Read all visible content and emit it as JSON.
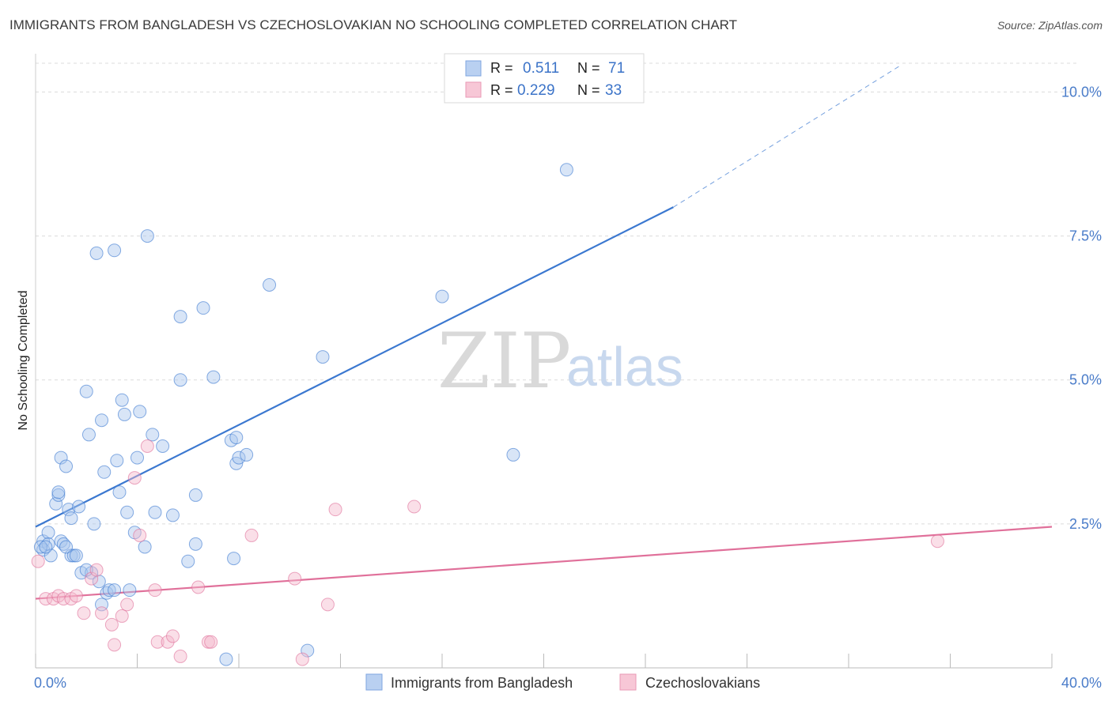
{
  "title": "IMMIGRANTS FROM BANGLADESH VS CZECHOSLOVAKIAN NO SCHOOLING COMPLETED CORRELATION CHART",
  "source": "Source: ZipAtlas.com",
  "watermark": {
    "zip": "ZIP",
    "atlas": "atlas"
  },
  "colors": {
    "blue": "#3b78d0",
    "blue_fill": "#a9c6ee",
    "pink": "#e0709a",
    "pink_fill": "#f4b8cc",
    "grid": "#dcdcdc",
    "tick_text": "#4a7cc9"
  },
  "stats": {
    "blue": {
      "r_label": "R =",
      "r_value": "0.511",
      "n_label": "N =",
      "n_value": "71"
    },
    "pink": {
      "r_label": "R =",
      "r_value": "0.229",
      "n_label": "N =",
      "n_value": "33"
    }
  },
  "chart_data": {
    "type": "scatter",
    "title": "IMMIGRANTS FROM BANGLADESH VS CZECHOSLOVAKIAN NO SCHOOLING COMPLETED CORRELATION CHART",
    "xlabel": "",
    "ylabel": "No Schooling Completed",
    "xlim": [
      0,
      40
    ],
    "ylim": [
      0,
      10.5
    ],
    "x_tick_labels": [
      "0.0%",
      "40.0%"
    ],
    "y_ticks": [
      2.5,
      5.0,
      7.5,
      10.0
    ],
    "y_tick_labels": [
      "2.5%",
      "5.0%",
      "7.5%",
      "10.0%"
    ],
    "grid": true,
    "legend_position": "bottom-center",
    "series": [
      {
        "name": "Immigrants from Bangladesh",
        "color": "#3b78d0",
        "trend": {
          "x0": 0,
          "y0": 2.45,
          "x1": 25.1,
          "y1": 8.0,
          "dashed_to_x": 34,
          "dashed_to_y": 10.45
        },
        "points": [
          [
            0.3,
            2.2
          ],
          [
            0.3,
            2.05
          ],
          [
            0.5,
            2.35
          ],
          [
            0.5,
            2.15
          ],
          [
            0.6,
            1.95
          ],
          [
            0.8,
            2.85
          ],
          [
            0.9,
            3.0
          ],
          [
            0.9,
            3.05
          ],
          [
            1.0,
            2.2
          ],
          [
            1.0,
            3.65
          ],
          [
            1.1,
            2.15
          ],
          [
            1.2,
            3.5
          ],
          [
            1.3,
            2.75
          ],
          [
            1.4,
            2.6
          ],
          [
            1.4,
            1.95
          ],
          [
            1.5,
            1.95
          ],
          [
            1.6,
            1.95
          ],
          [
            1.7,
            2.8
          ],
          [
            1.8,
            1.65
          ],
          [
            2.0,
            4.8
          ],
          [
            2.1,
            4.05
          ],
          [
            2.2,
            1.65
          ],
          [
            2.3,
            2.5
          ],
          [
            2.4,
            7.2
          ],
          [
            2.5,
            1.5
          ],
          [
            2.6,
            4.3
          ],
          [
            2.6,
            1.1
          ],
          [
            2.7,
            3.4
          ],
          [
            2.8,
            1.3
          ],
          [
            2.9,
            1.35
          ],
          [
            3.1,
            1.35
          ],
          [
            3.1,
            7.25
          ],
          [
            3.2,
            3.6
          ],
          [
            3.3,
            3.05
          ],
          [
            3.4,
            4.65
          ],
          [
            3.5,
            4.4
          ],
          [
            3.6,
            2.7
          ],
          [
            3.7,
            1.35
          ],
          [
            3.9,
            2.35
          ],
          [
            4.0,
            3.65
          ],
          [
            4.1,
            4.45
          ],
          [
            4.3,
            2.1
          ],
          [
            4.4,
            7.5
          ],
          [
            4.6,
            4.05
          ],
          [
            4.7,
            2.7
          ],
          [
            5.0,
            3.85
          ],
          [
            5.4,
            2.65
          ],
          [
            5.7,
            6.1
          ],
          [
            5.7,
            5.0
          ],
          [
            6.0,
            1.85
          ],
          [
            6.3,
            2.15
          ],
          [
            6.3,
            3.0
          ],
          [
            6.6,
            6.25
          ],
          [
            7.0,
            5.05
          ],
          [
            7.5,
            0.15
          ],
          [
            7.7,
            3.95
          ],
          [
            7.8,
            1.9
          ],
          [
            7.9,
            4.0
          ],
          [
            7.9,
            3.55
          ],
          [
            8.0,
            3.65
          ],
          [
            8.3,
            3.7
          ],
          [
            9.2,
            6.65
          ],
          [
            10.7,
            0.3
          ],
          [
            11.3,
            5.4
          ],
          [
            16.0,
            6.45
          ],
          [
            18.8,
            3.7
          ],
          [
            20.9,
            8.65
          ],
          [
            0.2,
            2.1
          ],
          [
            0.4,
            2.1
          ],
          [
            1.2,
            2.1
          ],
          [
            2.0,
            1.7
          ]
        ]
      },
      {
        "name": "Czechoslovakians",
        "color": "#e0709a",
        "trend": {
          "x0": 0,
          "y0": 1.2,
          "x1": 40,
          "y1": 2.45
        },
        "points": [
          [
            0.1,
            1.85
          ],
          [
            0.4,
            1.2
          ],
          [
            0.7,
            1.2
          ],
          [
            0.9,
            1.25
          ],
          [
            1.1,
            1.2
          ],
          [
            1.4,
            1.2
          ],
          [
            1.6,
            1.25
          ],
          [
            1.9,
            0.95
          ],
          [
            2.2,
            1.55
          ],
          [
            2.4,
            1.7
          ],
          [
            2.6,
            0.95
          ],
          [
            3.0,
            0.75
          ],
          [
            3.1,
            0.4
          ],
          [
            3.4,
            0.9
          ],
          [
            3.6,
            1.1
          ],
          [
            3.9,
            3.3
          ],
          [
            4.1,
            2.3
          ],
          [
            4.4,
            3.85
          ],
          [
            4.7,
            1.35
          ],
          [
            4.8,
            0.45
          ],
          [
            5.2,
            0.45
          ],
          [
            5.4,
            0.55
          ],
          [
            5.7,
            0.2
          ],
          [
            6.4,
            1.4
          ],
          [
            6.8,
            0.45
          ],
          [
            6.9,
            0.45
          ],
          [
            8.5,
            2.3
          ],
          [
            10.2,
            1.55
          ],
          [
            10.5,
            0.15
          ],
          [
            11.5,
            1.1
          ],
          [
            11.8,
            2.75
          ],
          [
            14.9,
            2.8
          ],
          [
            35.5,
            2.2
          ]
        ]
      }
    ]
  }
}
